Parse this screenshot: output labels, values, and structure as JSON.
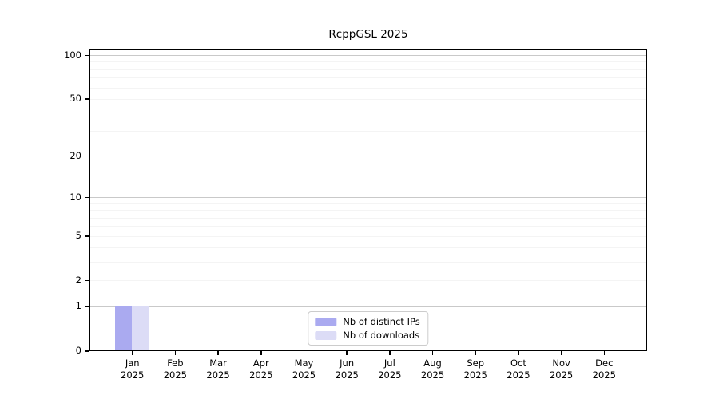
{
  "chart_data": {
    "type": "bar",
    "title": "RcppGSL 2025",
    "categories": [
      "Jan",
      "Feb",
      "Mar",
      "Apr",
      "May",
      "Jun",
      "Jul",
      "Aug",
      "Sep",
      "Oct",
      "Nov",
      "Dec"
    ],
    "category_year": "2025",
    "series": [
      {
        "name": "Nb of distinct IPs",
        "color": "#aaaaf0",
        "values": [
          1,
          0,
          0,
          0,
          0,
          0,
          0,
          0,
          0,
          0,
          0,
          0
        ]
      },
      {
        "name": "Nb of downloads",
        "color": "#dcdcf6",
        "values": [
          1,
          0,
          0,
          0,
          0,
          0,
          0,
          0,
          0,
          0,
          0,
          0
        ]
      }
    ],
    "yscale": "log1p",
    "ylim": [
      0,
      110
    ],
    "yticks_labeled": [
      0,
      1,
      2,
      5,
      10,
      20,
      50,
      100
    ],
    "gridlines_major": [
      1,
      10,
      100
    ],
    "gridlines_minor": [
      2,
      3,
      4,
      5,
      6,
      7,
      8,
      9,
      20,
      30,
      40,
      50,
      60,
      70,
      80,
      90
    ],
    "grid": "on",
    "legend_position": "bottom-center",
    "colors": {
      "frame": "#000000",
      "grid_major": "#c9c9c9",
      "grid_minor": "#f4f4f4",
      "text": "#000000"
    }
  }
}
